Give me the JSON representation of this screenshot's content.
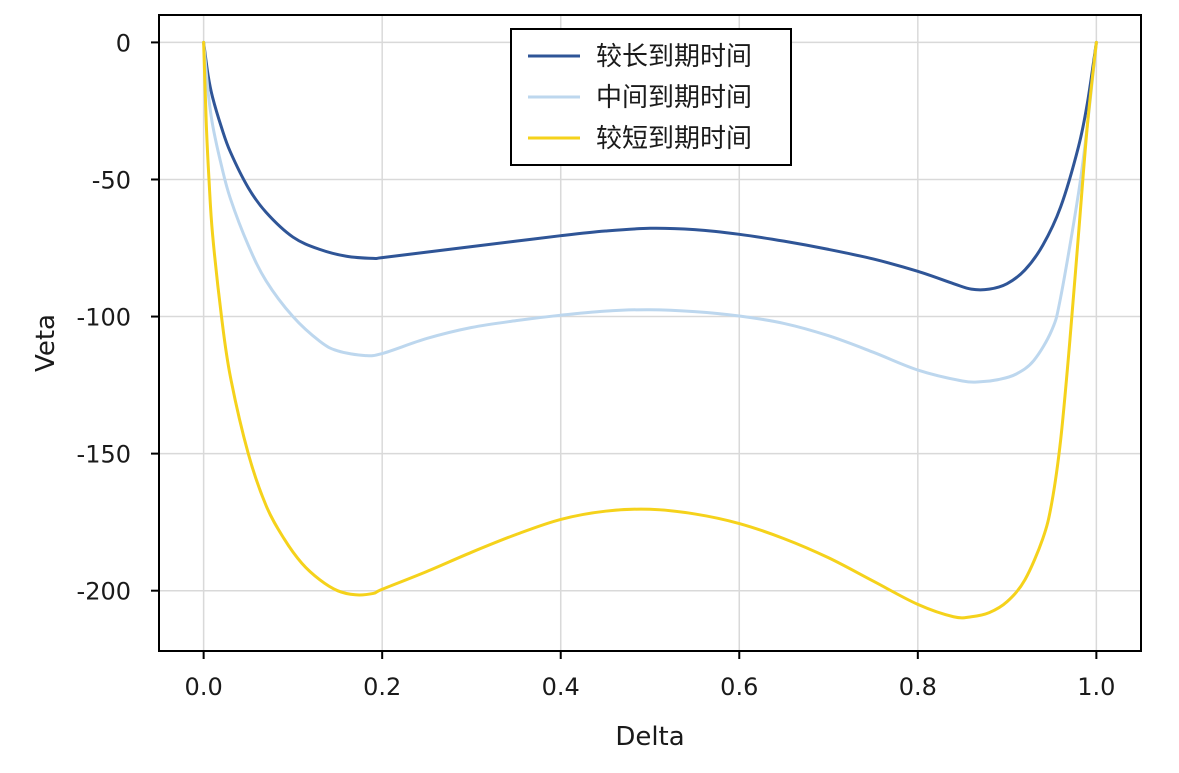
{
  "chart_data": {
    "type": "line",
    "title": "",
    "xlabel": "Delta",
    "ylabel": "Veta",
    "xlim": [
      -0.05,
      1.05
    ],
    "ylim": [
      -222,
      10
    ],
    "xticks": [
      0.0,
      0.2,
      0.4,
      0.6,
      0.8,
      1.0
    ],
    "xtick_labels": [
      "0.0",
      "0.2",
      "0.4",
      "0.6",
      "0.8",
      "1.0"
    ],
    "yticks": [
      0,
      -50,
      -100,
      -150,
      -200
    ],
    "ytick_labels": [
      "0",
      "-50",
      "-100",
      "-150",
      "-200"
    ],
    "grid": true,
    "legend_position": "top-center",
    "series": [
      {
        "name": "较长到期时间",
        "color": "#2f5597",
        "points": [
          [
            0.0,
            0
          ],
          [
            0.005,
            -12
          ],
          [
            0.01,
            -20
          ],
          [
            0.02,
            -31
          ],
          [
            0.03,
            -40
          ],
          [
            0.05,
            -53
          ],
          [
            0.07,
            -62
          ],
          [
            0.1,
            -71
          ],
          [
            0.13,
            -75.5
          ],
          [
            0.16,
            -78
          ],
          [
            0.19,
            -78.8
          ],
          [
            0.2,
            -78.5
          ],
          [
            0.25,
            -76.5
          ],
          [
            0.3,
            -74.5
          ],
          [
            0.35,
            -72.5
          ],
          [
            0.4,
            -70.5
          ],
          [
            0.45,
            -68.8
          ],
          [
            0.5,
            -67.8
          ],
          [
            0.55,
            -68.3
          ],
          [
            0.6,
            -70
          ],
          [
            0.65,
            -72.5
          ],
          [
            0.7,
            -75.5
          ],
          [
            0.75,
            -79
          ],
          [
            0.8,
            -83.5
          ],
          [
            0.84,
            -88
          ],
          [
            0.86,
            -90
          ],
          [
            0.88,
            -90
          ],
          [
            0.9,
            -88
          ],
          [
            0.92,
            -83
          ],
          [
            0.94,
            -74
          ],
          [
            0.96,
            -60
          ],
          [
            0.98,
            -38
          ],
          [
            0.99,
            -22
          ],
          [
            1.0,
            0
          ]
        ]
      },
      {
        "name": "中间到期时间",
        "color": "#bdd7ee",
        "points": [
          [
            0.0,
            0
          ],
          [
            0.005,
            -18
          ],
          [
            0.01,
            -30
          ],
          [
            0.02,
            -45
          ],
          [
            0.03,
            -57
          ],
          [
            0.05,
            -74
          ],
          [
            0.07,
            -87
          ],
          [
            0.1,
            -100
          ],
          [
            0.13,
            -109
          ],
          [
            0.15,
            -112.5
          ],
          [
            0.18,
            -114.2
          ],
          [
            0.2,
            -113.5
          ],
          [
            0.25,
            -108
          ],
          [
            0.3,
            -104
          ],
          [
            0.35,
            -101.5
          ],
          [
            0.4,
            -99.5
          ],
          [
            0.45,
            -98
          ],
          [
            0.5,
            -97.5
          ],
          [
            0.55,
            -98.2
          ],
          [
            0.6,
            -99.8
          ],
          [
            0.65,
            -102.5
          ],
          [
            0.7,
            -107
          ],
          [
            0.75,
            -113
          ],
          [
            0.8,
            -119.5
          ],
          [
            0.85,
            -123.5
          ],
          [
            0.87,
            -123.8
          ],
          [
            0.89,
            -123
          ],
          [
            0.91,
            -121
          ],
          [
            0.93,
            -116
          ],
          [
            0.95,
            -105
          ],
          [
            0.96,
            -93
          ],
          [
            0.98,
            -55
          ],
          [
            0.99,
            -30
          ],
          [
            1.0,
            0
          ]
        ]
      },
      {
        "name": "较短到期时间",
        "color": "#f5d21b",
        "points": [
          [
            0.0,
            0
          ],
          [
            0.003,
            -30
          ],
          [
            0.006,
            -50
          ],
          [
            0.01,
            -70
          ],
          [
            0.02,
            -100
          ],
          [
            0.03,
            -122
          ],
          [
            0.05,
            -150
          ],
          [
            0.07,
            -169
          ],
          [
            0.09,
            -181
          ],
          [
            0.11,
            -190
          ],
          [
            0.13,
            -196
          ],
          [
            0.15,
            -200
          ],
          [
            0.17,
            -201.5
          ],
          [
            0.19,
            -201
          ],
          [
            0.2,
            -199.5
          ],
          [
            0.25,
            -193
          ],
          [
            0.3,
            -186
          ],
          [
            0.35,
            -179.5
          ],
          [
            0.4,
            -174
          ],
          [
            0.45,
            -171
          ],
          [
            0.5,
            -170.3
          ],
          [
            0.55,
            -172
          ],
          [
            0.6,
            -175.5
          ],
          [
            0.65,
            -181
          ],
          [
            0.7,
            -188
          ],
          [
            0.75,
            -196.5
          ],
          [
            0.8,
            -205
          ],
          [
            0.84,
            -209.5
          ],
          [
            0.86,
            -209.5
          ],
          [
            0.88,
            -208
          ],
          [
            0.9,
            -204
          ],
          [
            0.92,
            -196
          ],
          [
            0.94,
            -181
          ],
          [
            0.95,
            -168
          ],
          [
            0.96,
            -145
          ],
          [
            0.97,
            -110
          ],
          [
            0.98,
            -70
          ],
          [
            0.99,
            -30
          ],
          [
            1.0,
            0
          ]
        ]
      }
    ]
  }
}
